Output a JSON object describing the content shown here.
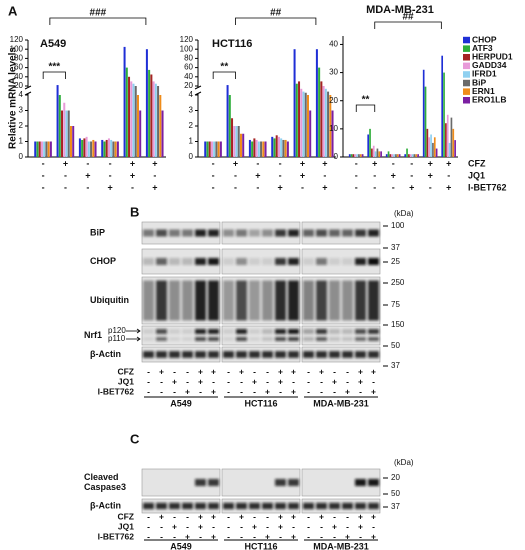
{
  "panel_a": {
    "label": "A",
    "y_label": "Relative mRNA levels"
  },
  "chart_data": [
    {
      "type": "bar",
      "title": "A549",
      "categories": [
        null,
        null,
        null,
        null,
        null,
        null
      ],
      "ylim": [
        0,
        120
      ],
      "ybreak": [
        4,
        20
      ],
      "yticks": [
        0,
        1,
        2,
        3,
        4,
        20,
        40,
        60,
        80,
        100,
        120
      ],
      "annotations": [
        "***",
        "###"
      ],
      "series": [
        {
          "color": "#1f2fd6",
          "values": [
            1,
            22,
            1.2,
            1.1,
            105,
            100
          ]
        },
        {
          "color": "#2eae3a",
          "values": [
            1,
            4,
            1.1,
            1,
            60,
            55
          ]
        },
        {
          "color": "#a52323",
          "values": [
            1,
            3,
            1.2,
            1.1,
            40,
            45
          ]
        },
        {
          "color": "#e89ad8",
          "values": [
            1,
            3.5,
            1.3,
            1.2,
            30,
            30
          ]
        },
        {
          "color": "#8fd0f0",
          "values": [
            1,
            3,
            1,
            1.1,
            25,
            25
          ]
        },
        {
          "color": "#6a6a6a",
          "values": [
            1,
            3,
            1,
            1,
            20,
            20
          ]
        },
        {
          "color": "#ef8c1a",
          "values": [
            1,
            2,
            1.1,
            1,
            4,
            4
          ]
        },
        {
          "color": "#7b1fa2",
          "values": [
            1,
            2,
            1,
            1,
            3,
            3
          ]
        }
      ]
    },
    {
      "type": "bar",
      "title": "HCT116",
      "categories": [
        null,
        null,
        null,
        null,
        null,
        null
      ],
      "ylim": [
        0,
        120
      ],
      "ybreak": [
        4,
        20
      ],
      "yticks": [
        0,
        1,
        2,
        3,
        4,
        20,
        40,
        60,
        80,
        100,
        120
      ],
      "annotations": [
        "**",
        "##"
      ],
      "series": [
        {
          "color": "#1f2fd6",
          "values": [
            1,
            22,
            1.1,
            1.3,
            100,
            100
          ]
        },
        {
          "color": "#2eae3a",
          "values": [
            1,
            4,
            1,
            1.2,
            25,
            60
          ]
        },
        {
          "color": "#a52323",
          "values": [
            1,
            2.5,
            1.2,
            1.4,
            30,
            30
          ]
        },
        {
          "color": "#e89ad8",
          "values": [
            1,
            2,
            1.1,
            1.3,
            15,
            20
          ]
        },
        {
          "color": "#8fd0f0",
          "values": [
            1,
            2,
            1,
            1.2,
            10,
            15
          ]
        },
        {
          "color": "#6a6a6a",
          "values": [
            1,
            2,
            1,
            1.1,
            8,
            10
          ]
        },
        {
          "color": "#ef8c1a",
          "values": [
            1,
            1.5,
            1,
            1.1,
            4,
            4
          ]
        },
        {
          "color": "#7b1fa2",
          "values": [
            1,
            1.5,
            1,
            1,
            3,
            3
          ]
        }
      ]
    },
    {
      "type": "bar",
      "title": "MDA-MB-231",
      "categories": [
        null,
        null,
        null,
        null,
        null,
        null
      ],
      "ylim": [
        0,
        43
      ],
      "yticks": [
        0,
        10,
        20,
        30,
        40
      ],
      "legend": "right",
      "annotations": [
        "**",
        "##"
      ],
      "series": [
        {
          "name": "CHOP",
          "color": "#1f2fd6",
          "values": [
            1,
            8,
            1,
            1,
            31,
            36
          ]
        },
        {
          "name": "ATF3",
          "color": "#2eae3a",
          "values": [
            1,
            10,
            2,
            3,
            25,
            30
          ]
        },
        {
          "name": "HERPUD1",
          "color": "#a52323",
          "values": [
            1,
            3,
            1,
            1,
            10,
            12
          ]
        },
        {
          "name": "GADD34",
          "color": "#e89ad8",
          "values": [
            1,
            4,
            1,
            1,
            7,
            15
          ]
        },
        {
          "name": "IFRD1",
          "color": "#8fd0f0",
          "values": [
            1,
            2,
            1,
            1,
            8,
            5
          ]
        },
        {
          "name": "BiP",
          "color": "#6a6a6a",
          "values": [
            1,
            3,
            1,
            1,
            5,
            14
          ]
        },
        {
          "name": "ERN1",
          "color": "#ef8c1a",
          "values": [
            1,
            2,
            1,
            1,
            7,
            10
          ]
        },
        {
          "name": "ERO1LB",
          "color": "#7b1fa2",
          "values": [
            1,
            2,
            1,
            1,
            3,
            6
          ]
        }
      ]
    }
  ],
  "treatments": {
    "rows": [
      "CFZ",
      "JQ1",
      "I-BET762"
    ],
    "marks": [
      [
        "-",
        "+",
        "-",
        "-",
        "+",
        "+"
      ],
      [
        "-",
        "-",
        "+",
        "-",
        "+",
        "-"
      ],
      [
        "-",
        "-",
        "-",
        "+",
        "-",
        "+"
      ]
    ]
  },
  "cell_lines": [
    "A549",
    "HCT116",
    "MDA-MB-231"
  ],
  "panel_b": {
    "label": "B",
    "unit": "(kDa)",
    "blots": [
      {
        "label": "BiP",
        "markers": [
          "100",
          "37"
        ]
      },
      {
        "label": "CHOP",
        "markers": [
          "25"
        ]
      },
      {
        "label": "Ubiquitin",
        "markers": [
          "250",
          "75"
        ]
      },
      {
        "label": "Nrf1",
        "bands": [
          "p120",
          "p110"
        ],
        "markers": [
          "150",
          "50"
        ]
      },
      {
        "label": "β-Actin",
        "markers": [
          "37"
        ]
      }
    ]
  },
  "panel_c": {
    "label": "C",
    "unit": "(kDa)",
    "blots": [
      {
        "label": [
          "Cleaved",
          "Caspase3"
        ],
        "markers": [
          "20"
        ]
      },
      {
        "label": "β-Actin",
        "markers": [
          "50",
          "37"
        ]
      }
    ]
  }
}
